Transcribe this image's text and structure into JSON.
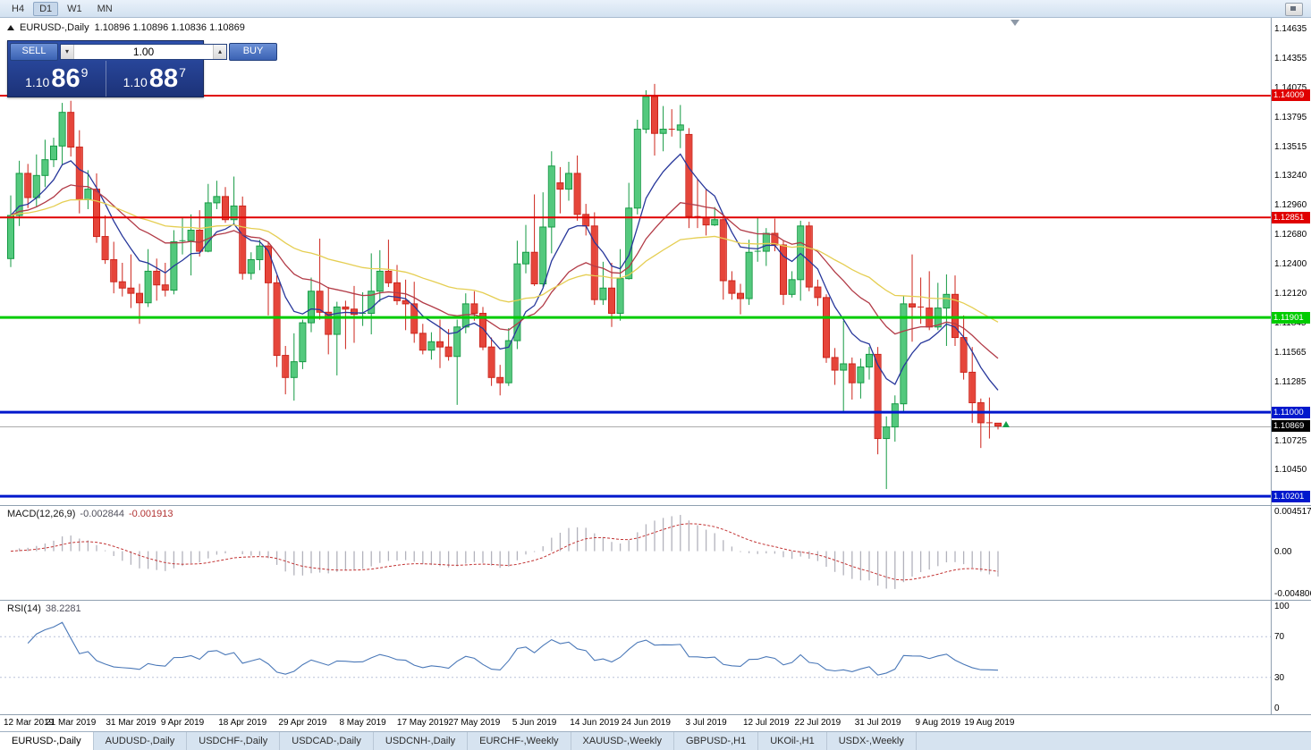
{
  "toolbar": {
    "timeframes": [
      "H4",
      "D1",
      "W1",
      "MN"
    ],
    "active": "D1"
  },
  "chart_header": {
    "symbol_period": "EURUSD-,Daily",
    "ohlc": "1.10896 1.10896 1.10836 1.10869"
  },
  "trade_panel": {
    "sell_label": "SELL",
    "buy_label": "BUY",
    "volume": "1.00",
    "sell_price": {
      "prefix": "1.10",
      "big": "86",
      "sup": "9"
    },
    "buy_price": {
      "prefix": "1.10",
      "big": "88",
      "sup": "7"
    }
  },
  "icons": {
    "volume_decrease": "▾",
    "volume_increase": "▴"
  },
  "indicators": {
    "macd": {
      "title": "MACD(12,26,9)",
      "value": "-0.002844",
      "signal": "-0.001913",
      "axis_labels": [
        "0.004517",
        "0.00",
        "-0.004806"
      ]
    },
    "rsi": {
      "title": "RSI(14)",
      "value": "38.2281",
      "axis_labels": [
        "100",
        "70",
        "30",
        "0"
      ]
    }
  },
  "tabs": {
    "active_index": 0,
    "items": [
      "EURUSD-,Daily",
      "AUDUSD-,Daily",
      "USDCHF-,Daily",
      "USDCAD-,Daily",
      "USDCNH-,Daily",
      "EURCHF-,Weekly",
      "XAUUSD-,Weekly",
      "GBPUSD-,H1",
      "UKOil-,H1",
      "USDX-,Weekly"
    ]
  },
  "chart_data": {
    "type": "candlestick",
    "symbol": "EURUSD-",
    "timeframe": "Daily",
    "current_bar": {
      "open": "1.10896",
      "high": "1.10896",
      "low": "1.10836",
      "close": "1.10869"
    },
    "y_axis": {
      "max": 1.1468,
      "min": 1.1016,
      "ticks": [
        "1.14635",
        "1.14355",
        "1.14075",
        "1.13795",
        "1.13515",
        "1.13240",
        "1.12960",
        "1.12680",
        "1.12400",
        "1.12120",
        "1.11845",
        "1.11565",
        "1.11285",
        "1.11000",
        "1.10725",
        "1.10450",
        "1.10201"
      ]
    },
    "x_labels": [
      {
        "t": "12 Mar 2019",
        "i": 0
      },
      {
        "t": "21 Mar 2019",
        "i": 7
      },
      {
        "t": "31 Mar 2019",
        "i": 14
      },
      {
        "t": "9 Apr 2019",
        "i": 20
      },
      {
        "t": "18 Apr 2019",
        "i": 27
      },
      {
        "t": "29 Apr 2019",
        "i": 34
      },
      {
        "t": "8 May 2019",
        "i": 41
      },
      {
        "t": "17 May 2019",
        "i": 48
      },
      {
        "t": "27 May 2019",
        "i": 54
      },
      {
        "t": "5 Jun 2019",
        "i": 61
      },
      {
        "t": "14 Jun 2019",
        "i": 68
      },
      {
        "t": "24 Jun 2019",
        "i": 74
      },
      {
        "t": "3 Jul 2019",
        "i": 81
      },
      {
        "t": "12 Jul 2019",
        "i": 88
      },
      {
        "t": "22 Jul 2019",
        "i": 94
      },
      {
        "t": "31 Jul 2019",
        "i": 101
      },
      {
        "t": "9 Aug 2019",
        "i": 108
      },
      {
        "t": "19 Aug 2019",
        "i": 114
      }
    ],
    "candles": [
      [
        1.1246,
        1.1306,
        1.1238,
        1.1287
      ],
      [
        1.1287,
        1.1339,
        1.1277,
        1.1327
      ],
      [
        1.1327,
        1.1336,
        1.1294,
        1.1304
      ],
      [
        1.1304,
        1.1345,
        1.1295,
        1.1325
      ],
      [
        1.1325,
        1.1359,
        1.1314,
        1.134
      ],
      [
        1.134,
        1.1361,
        1.1333,
        1.1353
      ],
      [
        1.1353,
        1.1394,
        1.1335,
        1.1385
      ],
      [
        1.1385,
        1.1396,
        1.1343,
        1.1352
      ],
      [
        1.1352,
        1.1368,
        1.1289,
        1.1302
      ],
      [
        1.1302,
        1.133,
        1.1293,
        1.1312
      ],
      [
        1.1312,
        1.1327,
        1.1261,
        1.1267
      ],
      [
        1.1267,
        1.1287,
        1.1241,
        1.1245
      ],
      [
        1.1245,
        1.1262,
        1.1213,
        1.1224
      ],
      [
        1.1224,
        1.1242,
        1.121,
        1.1218
      ],
      [
        1.1218,
        1.125,
        1.1199,
        1.1213
      ],
      [
        1.1213,
        1.1222,
        1.1184,
        1.1204
      ],
      [
        1.1204,
        1.1255,
        1.12,
        1.1234
      ],
      [
        1.1234,
        1.1246,
        1.1206,
        1.1221
      ],
      [
        1.1221,
        1.1242,
        1.121,
        1.1216
      ],
      [
        1.1216,
        1.1273,
        1.1212,
        1.1262
      ],
      [
        1.1262,
        1.1285,
        1.125,
        1.1263
      ],
      [
        1.1263,
        1.1288,
        1.123,
        1.1273
      ],
      [
        1.1273,
        1.1292,
        1.1248,
        1.1253
      ],
      [
        1.1253,
        1.1317,
        1.1252,
        1.1299
      ],
      [
        1.1299,
        1.132,
        1.1293,
        1.1305
      ],
      [
        1.1305,
        1.1314,
        1.128,
        1.1283
      ],
      [
        1.1283,
        1.1324,
        1.1279,
        1.1296
      ],
      [
        1.1296,
        1.1305,
        1.1226,
        1.1232
      ],
      [
        1.1232,
        1.1252,
        1.1226,
        1.1245
      ],
      [
        1.1245,
        1.1264,
        1.1235,
        1.1258
      ],
      [
        1.1258,
        1.1262,
        1.1192,
        1.1223
      ],
      [
        1.1223,
        1.123,
        1.1143,
        1.1154
      ],
      [
        1.1154,
        1.1163,
        1.1117,
        1.1133
      ],
      [
        1.1133,
        1.1175,
        1.1111,
        1.1148
      ],
      [
        1.1148,
        1.1188,
        1.1141,
        1.1185
      ],
      [
        1.1185,
        1.1228,
        1.1176,
        1.1215
      ],
      [
        1.1215,
        1.1265,
        1.1188,
        1.1195
      ],
      [
        1.1195,
        1.1219,
        1.1155,
        1.1174
      ],
      [
        1.1174,
        1.1205,
        1.1135,
        1.12
      ],
      [
        1.12,
        1.1206,
        1.116,
        1.1198
      ],
      [
        1.1198,
        1.122,
        1.1166,
        1.1193
      ],
      [
        1.1193,
        1.1214,
        1.1182,
        1.1194
      ],
      [
        1.1194,
        1.1251,
        1.1174,
        1.1215
      ],
      [
        1.1215,
        1.1254,
        1.1205,
        1.1234
      ],
      [
        1.1234,
        1.1264,
        1.1219,
        1.1223
      ],
      [
        1.1223,
        1.124,
        1.1202,
        1.1206
      ],
      [
        1.1206,
        1.1226,
        1.1178,
        1.1203
      ],
      [
        1.1203,
        1.1224,
        1.1166,
        1.1175
      ],
      [
        1.1175,
        1.1184,
        1.1155,
        1.1159
      ],
      [
        1.1159,
        1.1176,
        1.115,
        1.1167
      ],
      [
        1.1167,
        1.1188,
        1.1142,
        1.1162
      ],
      [
        1.1162,
        1.1179,
        1.1149,
        1.1153
      ],
      [
        1.1153,
        1.1188,
        1.1107,
        1.1181
      ],
      [
        1.1181,
        1.1213,
        1.1175,
        1.1203
      ],
      [
        1.1203,
        1.1215,
        1.1187,
        1.1194
      ],
      [
        1.1194,
        1.12,
        1.1159,
        1.1162
      ],
      [
        1.1162,
        1.1171,
        1.1125,
        1.1133
      ],
      [
        1.1133,
        1.1145,
        1.1116,
        1.1128
      ],
      [
        1.1128,
        1.118,
        1.1125,
        1.1168
      ],
      [
        1.1168,
        1.1263,
        1.116,
        1.1241
      ],
      [
        1.1241,
        1.1278,
        1.1232,
        1.1252
      ],
      [
        1.1252,
        1.1307,
        1.122,
        1.1222
      ],
      [
        1.1222,
        1.1309,
        1.1219,
        1.1276
      ],
      [
        1.1276,
        1.1348,
        1.1251,
        1.1334
      ],
      [
        1.1318,
        1.1333,
        1.1289,
        1.1312
      ],
      [
        1.1312,
        1.1338,
        1.1301,
        1.1327
      ],
      [
        1.1327,
        1.1344,
        1.1282,
        1.1288
      ],
      [
        1.1288,
        1.1298,
        1.1268,
        1.1277
      ],
      [
        1.1277,
        1.129,
        1.1202,
        1.1207
      ],
      [
        1.1207,
        1.1243,
        1.1202,
        1.1218
      ],
      [
        1.1218,
        1.1242,
        1.1181,
        1.1194
      ],
      [
        1.1194,
        1.1255,
        1.1187,
        1.1227
      ],
      [
        1.1227,
        1.1318,
        1.1226,
        1.1294
      ],
      [
        1.1294,
        1.1378,
        1.1288,
        1.1369
      ],
      [
        1.1369,
        1.1406,
        1.1365,
        1.14
      ],
      [
        1.14,
        1.1412,
        1.1344,
        1.1365
      ],
      [
        1.1365,
        1.1391,
        1.1348,
        1.1369
      ],
      [
        1.1369,
        1.1388,
        1.1362,
        1.1368
      ],
      [
        1.1368,
        1.1392,
        1.1351,
        1.1373
      ],
      [
        1.1364,
        1.137,
        1.1275,
        1.1286
      ],
      [
        1.1286,
        1.1322,
        1.1275,
        1.1285
      ],
      [
        1.1285,
        1.1312,
        1.1268,
        1.1278
      ],
      [
        1.1278,
        1.1295,
        1.1277,
        1.1283
      ],
      [
        1.1283,
        1.1288,
        1.1207,
        1.1225
      ],
      [
        1.1225,
        1.1234,
        1.1207,
        1.1213
      ],
      [
        1.1213,
        1.1222,
        1.1193,
        1.1208
      ],
      [
        1.1208,
        1.1264,
        1.1202,
        1.1252
      ],
      [
        1.1252,
        1.1285,
        1.1243,
        1.1253
      ],
      [
        1.1253,
        1.1275,
        1.1239,
        1.127
      ],
      [
        1.127,
        1.1284,
        1.1253,
        1.1259
      ],
      [
        1.1259,
        1.1263,
        1.1202,
        1.1212
      ],
      [
        1.1212,
        1.1234,
        1.1209,
        1.1226
      ],
      [
        1.1226,
        1.1282,
        1.1206,
        1.1277
      ],
      [
        1.1277,
        1.1281,
        1.1215,
        1.1219
      ],
      [
        1.1219,
        1.1226,
        1.1201,
        1.1209
      ],
      [
        1.1209,
        1.1212,
        1.1147,
        1.1152
      ],
      [
        1.1152,
        1.1161,
        1.1126,
        1.114
      ],
      [
        1.114,
        1.1187,
        1.1101,
        1.1146
      ],
      [
        1.1146,
        1.1152,
        1.1112,
        1.1128
      ],
      [
        1.1128,
        1.1151,
        1.1113,
        1.1143
      ],
      [
        1.1143,
        1.1162,
        1.1131,
        1.1155
      ],
      [
        1.1155,
        1.1162,
        1.106,
        1.1075
      ],
      [
        1.1075,
        1.1096,
        1.1027,
        1.1086
      ],
      [
        1.1086,
        1.1116,
        1.1072,
        1.1108
      ],
      [
        1.1108,
        1.1211,
        1.1101,
        1.1203
      ],
      [
        1.1203,
        1.125,
        1.1167,
        1.12
      ],
      [
        1.12,
        1.1228,
        1.1184,
        1.1199
      ],
      [
        1.1199,
        1.1234,
        1.1178,
        1.1181
      ],
      [
        1.1181,
        1.1223,
        1.1178,
        1.1199
      ],
      [
        1.1199,
        1.1231,
        1.1163,
        1.1212
      ],
      [
        1.1212,
        1.123,
        1.1163,
        1.1171
      ],
      [
        1.1171,
        1.1192,
        1.1131,
        1.1138
      ],
      [
        1.1138,
        1.1162,
        1.109,
        1.1109
      ],
      [
        1.1109,
        1.1113,
        1.1066,
        1.109
      ],
      [
        1.109,
        1.1114,
        1.1075,
        1.10896
      ],
      [
        1.10896,
        1.10896,
        1.10836,
        1.10869
      ]
    ],
    "candle_colors": {
      "up_fill": "#53c97d",
      "up_stroke": "#149a43",
      "down_fill": "#e6453a",
      "down_stroke": "#cc241b"
    },
    "moving_averages": [
      {
        "period": 8,
        "method": "ema",
        "color": "#27379b"
      },
      {
        "period": 20,
        "method": "ema",
        "color": "#b23b47"
      },
      {
        "period": 45,
        "method": "ema",
        "color": "#e5ce52"
      }
    ],
    "hlines": [
      {
        "price": 1.14009,
        "label": "1.14009",
        "color": "#e00000",
        "width": 2
      },
      {
        "price": 1.12851,
        "label": "1.12851",
        "color": "#e00000",
        "width": 2
      },
      {
        "price": 1.11901,
        "label": "1.11901",
        "color": "#00cc00",
        "width": 3
      },
      {
        "price": 1.11,
        "label": "1.11000",
        "color": "#0018cc",
        "width": 3
      },
      {
        "price": 1.10201,
        "label": "1.10201",
        "color": "#0018cc",
        "width": 3
      }
    ],
    "bid_tag": {
      "label": "1.10869",
      "price": 1.10869,
      "color": "#000000"
    },
    "macd": {
      "fast": 12,
      "slow": 26,
      "signal_period": 9,
      "axis_max": 0.004517,
      "axis_min": -0.004806,
      "histogram_color": "#b2b2bc",
      "signal_color": "#c23333"
    },
    "rsi": {
      "period": 14,
      "levels": [
        70,
        30
      ],
      "line_color": "#4a78b8",
      "level_color": "#b9c2d9"
    }
  }
}
